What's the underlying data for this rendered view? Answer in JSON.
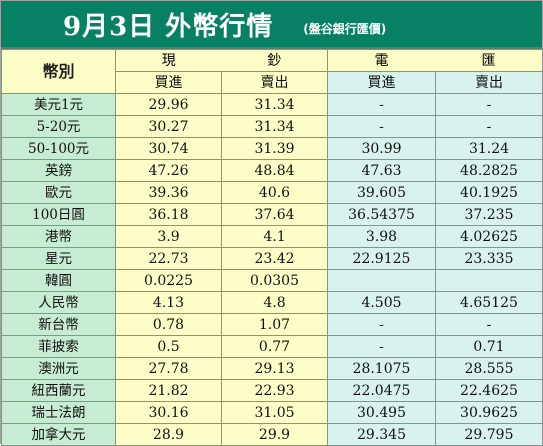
{
  "title": {
    "main": "9月3日 外幣行情",
    "sub": "(盤谷銀行匯價)"
  },
  "header": {
    "currency_label": "幣別",
    "cash_label": [
      "現",
      "鈔"
    ],
    "wire_label": [
      "電",
      "匯"
    ],
    "buy_label": "買進",
    "sell_label": "賣出"
  },
  "rows": [
    {
      "name": "美元1元",
      "cash_buy": "29.96",
      "cash_sell": "31.34",
      "wire_buy": "-",
      "wire_sell": "-"
    },
    {
      "name": "5-20元",
      "cash_buy": "30.27",
      "cash_sell": "31.34",
      "wire_buy": "-",
      "wire_sell": "-"
    },
    {
      "name": "50-100元",
      "cash_buy": "30.74",
      "cash_sell": "31.39",
      "wire_buy": "30.99",
      "wire_sell": "31.24"
    },
    {
      "name": "英鎊",
      "cash_buy": "47.26",
      "cash_sell": "48.84",
      "wire_buy": "47.63",
      "wire_sell": "48.2825"
    },
    {
      "name": "歐元",
      "cash_buy": "39.36",
      "cash_sell": "40.6",
      "wire_buy": "39.605",
      "wire_sell": "40.1925"
    },
    {
      "name": "100日圓",
      "cash_buy": "36.18",
      "cash_sell": "37.64",
      "wire_buy": "36.54375",
      "wire_sell": "37.235"
    },
    {
      "name": "港幣",
      "cash_buy": "3.9",
      "cash_sell": "4.1",
      "wire_buy": "3.98",
      "wire_sell": "4.02625"
    },
    {
      "name": "星元",
      "cash_buy": "22.73",
      "cash_sell": "23.42",
      "wire_buy": "22.9125",
      "wire_sell": "23.335"
    },
    {
      "name": "韓圓",
      "cash_buy": "0.0225",
      "cash_sell": "0.0305",
      "wire_buy": "",
      "wire_sell": ""
    },
    {
      "name": "人民幣",
      "cash_buy": "4.13",
      "cash_sell": "4.8",
      "wire_buy": "4.505",
      "wire_sell": "4.65125"
    },
    {
      "name": "新台幣",
      "cash_buy": "0.78",
      "cash_sell": "1.07",
      "wire_buy": "-",
      "wire_sell": "-"
    },
    {
      "name": "菲披索",
      "cash_buy": "0.5",
      "cash_sell": "0.77",
      "wire_buy": "-",
      "wire_sell": "0.71"
    },
    {
      "name": "澳洲元",
      "cash_buy": "27.78",
      "cash_sell": "29.13",
      "wire_buy": "28.1075",
      "wire_sell": "28.555"
    },
    {
      "name": "紐西蘭元",
      "cash_buy": "21.82",
      "cash_sell": "22.93",
      "wire_buy": "22.0475",
      "wire_sell": "22.4625"
    },
    {
      "name": "瑞士法朗",
      "cash_buy": "30.16",
      "cash_sell": "31.05",
      "wire_buy": "30.495",
      "wire_sell": "30.9625"
    },
    {
      "name": "加拿大元",
      "cash_buy": "28.9",
      "cash_sell": "29.9",
      "wire_buy": "29.345",
      "wire_sell": "29.795"
    }
  ],
  "colors": {
    "title_bg": "#078063",
    "name_column_bg": "#c6ecd4",
    "cash_column_bg": "#fdfdc8",
    "wire_column_bg": "#d8f3ee"
  }
}
